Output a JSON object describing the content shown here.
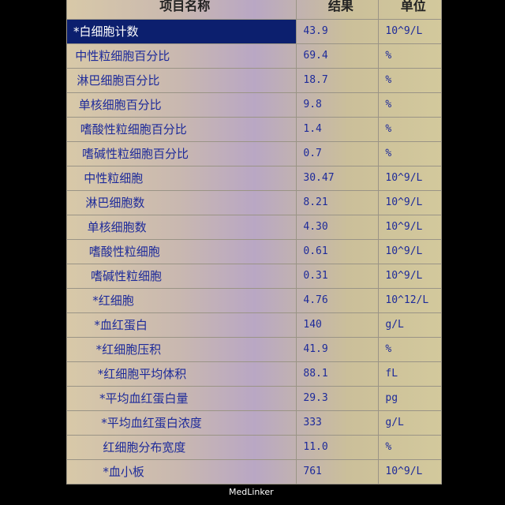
{
  "headers": [
    "项目名称",
    "结果",
    "单位"
  ],
  "rows": [
    {
      "name": "*白细胞计数",
      "value": "43.9",
      "unit": "10^9/L"
    },
    {
      "name": "中性粒细胞百分比",
      "value": "69.4",
      "unit": "%"
    },
    {
      "name": "淋巴细胞百分比",
      "value": "18.7",
      "unit": "%"
    },
    {
      "name": "单核细胞百分比",
      "value": "9.8",
      "unit": "%"
    },
    {
      "name": "嗜酸性粒细胞百分比",
      "value": "1.4",
      "unit": "%"
    },
    {
      "name": "嗜碱性粒细胞百分比",
      "value": "0.7",
      "unit": "%"
    },
    {
      "name": "中性粒细胞",
      "value": "30.47",
      "unit": "10^9/L"
    },
    {
      "name": "淋巴细胞数",
      "value": "8.21",
      "unit": "10^9/L"
    },
    {
      "name": "单核细胞数",
      "value": "4.30",
      "unit": "10^9/L"
    },
    {
      "name": "嗜酸性粒细胞",
      "value": "0.61",
      "unit": "10^9/L"
    },
    {
      "name": "嗜碱性粒细胞",
      "value": "0.31",
      "unit": "10^9/L"
    },
    {
      "name": "*红细胞",
      "value": "4.76",
      "unit": "10^12/L"
    },
    {
      "name": "*血红蛋白",
      "value": "140",
      "unit": "g/L"
    },
    {
      "name": "*红细胞压积",
      "value": "41.9",
      "unit": "%"
    },
    {
      "name": "*红细胞平均体积",
      "value": "88.1",
      "unit": "fL"
    },
    {
      "name": "*平均血红蛋白量",
      "value": "29.3",
      "unit": "pg"
    },
    {
      "name": "*平均血红蛋白浓度",
      "value": "333",
      "unit": "g/L"
    },
    {
      "name": "红细胞分布宽度",
      "value": "11.0",
      "unit": "%"
    },
    {
      "name": "*血小板",
      "value": "761",
      "unit": "10^9/L"
    }
  ],
  "selected_row": 0,
  "watermark": "MedLinker"
}
